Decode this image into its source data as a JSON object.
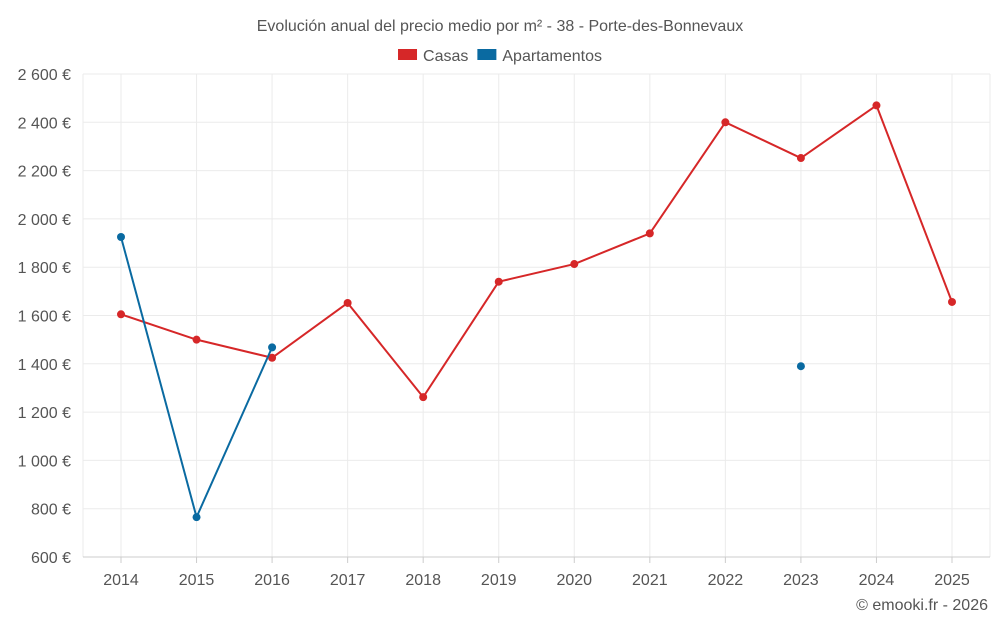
{
  "chart_data": {
    "type": "line",
    "title": "Evolución anual del precio medio por m² - 38 - Porte-des-Bonnevaux",
    "xlabel": "",
    "ylabel": "",
    "categories": [
      "2014",
      "2015",
      "2016",
      "2017",
      "2018",
      "2019",
      "2020",
      "2021",
      "2022",
      "2023",
      "2024",
      "2025"
    ],
    "ylim": [
      600,
      2600
    ],
    "yticks": [
      600,
      800,
      1000,
      1200,
      1400,
      1600,
      1800,
      2000,
      2200,
      2400,
      2600
    ],
    "ytick_labels": [
      "600 €",
      "800 €",
      "1 000 €",
      "1 200 €",
      "1 400 €",
      "1 600 €",
      "1 800 €",
      "2 000 €",
      "2 200 €",
      "2 400 €",
      "2 600 €"
    ],
    "grid": true,
    "legend_position": "top-center",
    "series": [
      {
        "name": "Casas",
        "color": "#d62728",
        "values": [
          1605,
          1500,
          1425,
          1652,
          1262,
          1740,
          1813,
          1940,
          2400,
          2252,
          2470,
          1656
        ]
      },
      {
        "name": "Apartamentos",
        "color": "#0a6aa1",
        "values": [
          1925,
          765,
          1468,
          null,
          null,
          null,
          null,
          null,
          null,
          1390,
          null,
          null
        ]
      }
    ],
    "credit": "© emooki.fr - 2026"
  }
}
